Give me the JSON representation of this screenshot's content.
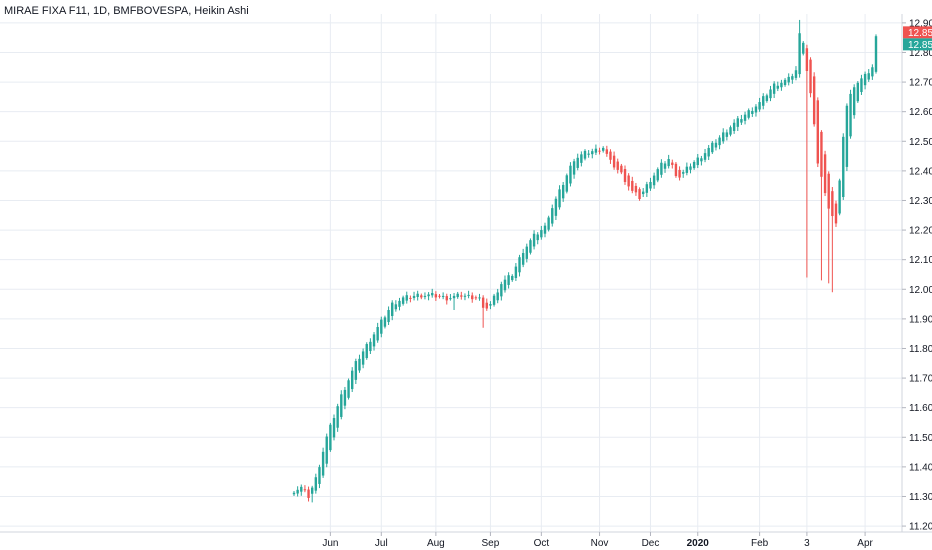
{
  "chart_title": "MIRAE FIXA F11, 1D, BMFBOVESPA, Heikin Ashi",
  "colors": {
    "up": "#26a69a",
    "down": "#ef5350",
    "grid": "#e8ecf2",
    "text": "#131722",
    "axis": "#787b86",
    "background": "#ffffff"
  },
  "price_tags": [
    {
      "label": "12.85",
      "value": 12.868,
      "color": "#ef5350"
    },
    {
      "label": "12.85",
      "value": 12.83,
      "color": "#26a69a"
    }
  ],
  "chart_data": {
    "type": "candlestick",
    "title": "MIRAE FIXA F11, 1D, BMFBOVESPA, Heikin Ashi",
    "grid": true,
    "ylim": [
      11.18,
      12.93
    ],
    "y_ticks": [
      "11.20",
      "11.30",
      "11.40",
      "11.50",
      "11.60",
      "11.70",
      "11.80",
      "11.90",
      "12.00",
      "12.10",
      "12.20",
      "12.30",
      "12.40",
      "12.50",
      "12.60",
      "12.70",
      "12.80",
      "12.90"
    ],
    "x_ticks": [
      {
        "label": "Jun",
        "index": 10
      },
      {
        "label": "Jul",
        "index": 24
      },
      {
        "label": "Aug",
        "index": 39
      },
      {
        "label": "Sep",
        "index": 54
      },
      {
        "label": "Oct",
        "index": 68
      },
      {
        "label": "Nov",
        "index": 84
      },
      {
        "label": "Dec",
        "index": 98
      },
      {
        "label": "2020",
        "index": 111,
        "bold": true
      },
      {
        "label": "Feb",
        "index": 128
      },
      {
        "label": "3",
        "index": 141
      },
      {
        "label": "Apr",
        "index": 157
      }
    ],
    "x_range": [
      -0.5,
      163
    ],
    "waypoints": [
      [
        0,
        11.32
      ],
      [
        2,
        11.33
      ],
      [
        4,
        11.3
      ],
      [
        6,
        11.36
      ],
      [
        9,
        11.5
      ],
      [
        13,
        11.64
      ],
      [
        17,
        11.75
      ],
      [
        21,
        11.83
      ],
      [
        24,
        11.89
      ],
      [
        27,
        11.95
      ],
      [
        30,
        11.97
      ],
      [
        34,
        11.98
      ],
      [
        38,
        11.98
      ],
      [
        42,
        11.97
      ],
      [
        46,
        11.98
      ],
      [
        51,
        11.97
      ],
      [
        52,
        11.93
      ],
      [
        54,
        11.95
      ],
      [
        57,
        12.02
      ],
      [
        60,
        12.05
      ],
      [
        63,
        12.13
      ],
      [
        66,
        12.18
      ],
      [
        69,
        12.21
      ],
      [
        70,
        12.25
      ],
      [
        73,
        12.33
      ],
      [
        77,
        12.44
      ],
      [
        80,
        12.46
      ],
      [
        83,
        12.47
      ],
      [
        85,
        12.48
      ],
      [
        87,
        12.43
      ],
      [
        90,
        12.39
      ],
      [
        93,
        12.33
      ],
      [
        95,
        12.31
      ],
      [
        98,
        12.37
      ],
      [
        101,
        12.42
      ],
      [
        103,
        12.44
      ],
      [
        105,
        12.39
      ],
      [
        106,
        12.38
      ],
      [
        109,
        12.42
      ],
      [
        112,
        12.45
      ],
      [
        116,
        12.5
      ],
      [
        120,
        12.55
      ],
      [
        124,
        12.59
      ],
      [
        128,
        12.63
      ],
      [
        132,
        12.69
      ],
      [
        136,
        12.71
      ],
      [
        138,
        12.74
      ],
      [
        139,
        12.86
      ],
      [
        140,
        12.84
      ],
      [
        141,
        12.74
      ],
      [
        142,
        12.66
      ],
      [
        143,
        12.55
      ],
      [
        144,
        12.43
      ],
      [
        145,
        12.38
      ],
      [
        146,
        12.32
      ],
      [
        147,
        12.28
      ],
      [
        148,
        12.25
      ],
      [
        149,
        12.22
      ],
      [
        150,
        12.36
      ],
      [
        151,
        12.52
      ],
      [
        152,
        12.62
      ],
      [
        154,
        12.69
      ],
      [
        157,
        12.72
      ],
      [
        159,
        12.75
      ],
      [
        160,
        12.85
      ]
    ],
    "wicks": [
      {
        "index": 141,
        "low": 12.04
      },
      {
        "index": 145,
        "low": 12.03
      },
      {
        "index": 147,
        "low": 12.02
      },
      {
        "index": 148,
        "low": 11.99
      },
      {
        "index": 44,
        "low": 11.93
      },
      {
        "index": 52,
        "low": 11.87
      },
      {
        "index": 5,
        "low": 11.28
      },
      {
        "index": 139,
        "high": 12.91
      }
    ]
  }
}
